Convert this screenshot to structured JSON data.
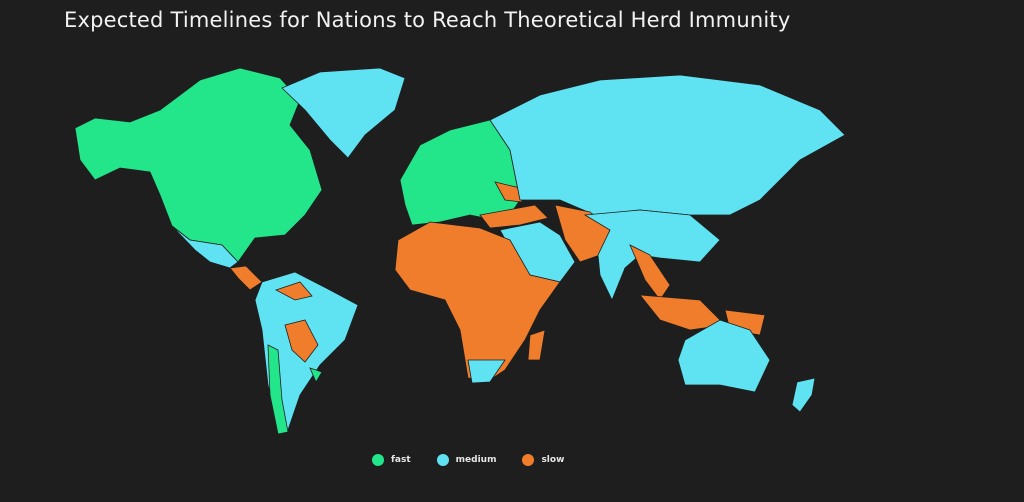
{
  "title": "Expected Timelines for Nations to Reach Theoretical Herd Immunity",
  "colors": {
    "background": "#1e1e1e",
    "fast": "#23e68b",
    "medium": "#5fe3f3",
    "slow": "#f07d2c"
  },
  "legend": [
    {
      "key": "fast",
      "label": "fast",
      "color": "#23e68b"
    },
    {
      "key": "medium",
      "label": "medium",
      "color": "#5fe3f3"
    },
    {
      "key": "slow",
      "label": "slow",
      "color": "#f07d2c"
    }
  ],
  "regions": [
    {
      "name": "North America (Canada, USA)",
      "category": "fast"
    },
    {
      "name": "Greenland",
      "category": "medium"
    },
    {
      "name": "Mexico",
      "category": "medium"
    },
    {
      "name": "Central America",
      "category": "slow"
    },
    {
      "name": "South America",
      "category": "medium"
    },
    {
      "name": "Venezuela / Bolivia / Paraguay",
      "category": "slow"
    },
    {
      "name": "Chile / Uruguay",
      "category": "fast"
    },
    {
      "name": "Europe",
      "category": "fast"
    },
    {
      "name": "Eastern Europe / Turkey",
      "category": "slow"
    },
    {
      "name": "Russia / Central Asia",
      "category": "medium"
    },
    {
      "name": "Middle East",
      "category": "medium"
    },
    {
      "name": "Africa",
      "category": "slow"
    },
    {
      "name": "Southern Africa",
      "category": "medium"
    },
    {
      "name": "South Asia (Iran, Afghanistan, Pakistan)",
      "category": "slow"
    },
    {
      "name": "India / China",
      "category": "medium"
    },
    {
      "name": "Southeast Asia",
      "category": "slow"
    },
    {
      "name": "Indonesia / Papua New Guinea",
      "category": "slow"
    },
    {
      "name": "Australia / New Zealand",
      "category": "medium"
    }
  ]
}
